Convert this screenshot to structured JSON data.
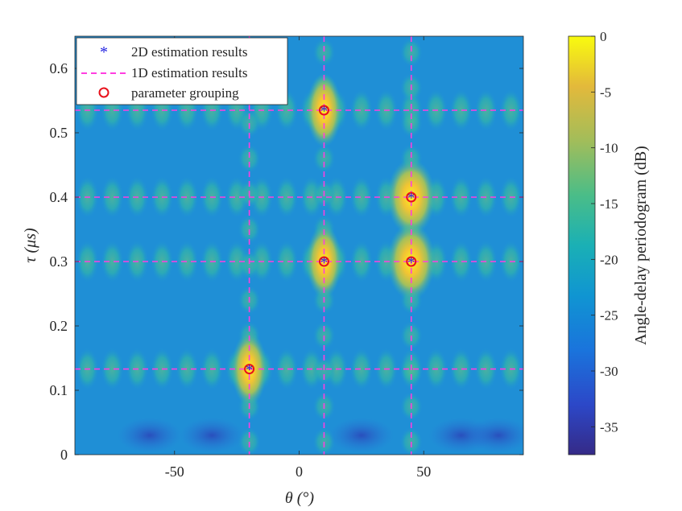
{
  "chart_data": {
    "type": "heatmap",
    "title": "",
    "xlabel": "θ (°)",
    "ylabel": "τ (μs)",
    "xlim": [
      -90,
      90
    ],
    "ylim": [
      0,
      0.65
    ],
    "xticks": [
      -50,
      0,
      50
    ],
    "yticks": [
      0,
      0.1,
      0.2,
      0.3,
      0.4,
      0.5,
      0.6
    ],
    "xtick_labels": [
      "-50",
      "0",
      "50"
    ],
    "ytick_labels": [
      "0",
      "0.1",
      "0.2",
      "0.3",
      "0.4",
      "0.5",
      "0.6"
    ],
    "colorbar": {
      "label": "Angle-delay periodogram (dB)",
      "range": [
        -37.5,
        0
      ],
      "ticks": [
        0,
        -5,
        -10,
        -15,
        -20,
        -25,
        -30,
        -35
      ],
      "tick_labels": [
        "0",
        "-5",
        "-10",
        "-15",
        "-20",
        "-25",
        "-30",
        "-35"
      ],
      "colormap": "parula"
    },
    "peaks": [
      {
        "theta": -20,
        "tau": 0.133
      },
      {
        "theta": 10,
        "tau": 0.535
      },
      {
        "theta": 10,
        "tau": 0.3
      },
      {
        "theta": 45,
        "tau": 0.4
      },
      {
        "theta": 45,
        "tau": 0.3
      }
    ],
    "lines_1d": {
      "theta": [
        -20,
        10,
        45
      ],
      "tau": [
        0.133,
        0.3,
        0.4,
        0.535
      ]
    },
    "legend": {
      "position": "top-left",
      "entries": [
        {
          "label": "2D estimation results",
          "marker": "asterisk",
          "color": "#1f1fe0"
        },
        {
          "label": "1D estimation results",
          "marker": "dashed-line",
          "color": "#ff3ee0"
        },
        {
          "label": "parameter grouping",
          "marker": "circle",
          "color": "#e8101a"
        }
      ]
    }
  }
}
